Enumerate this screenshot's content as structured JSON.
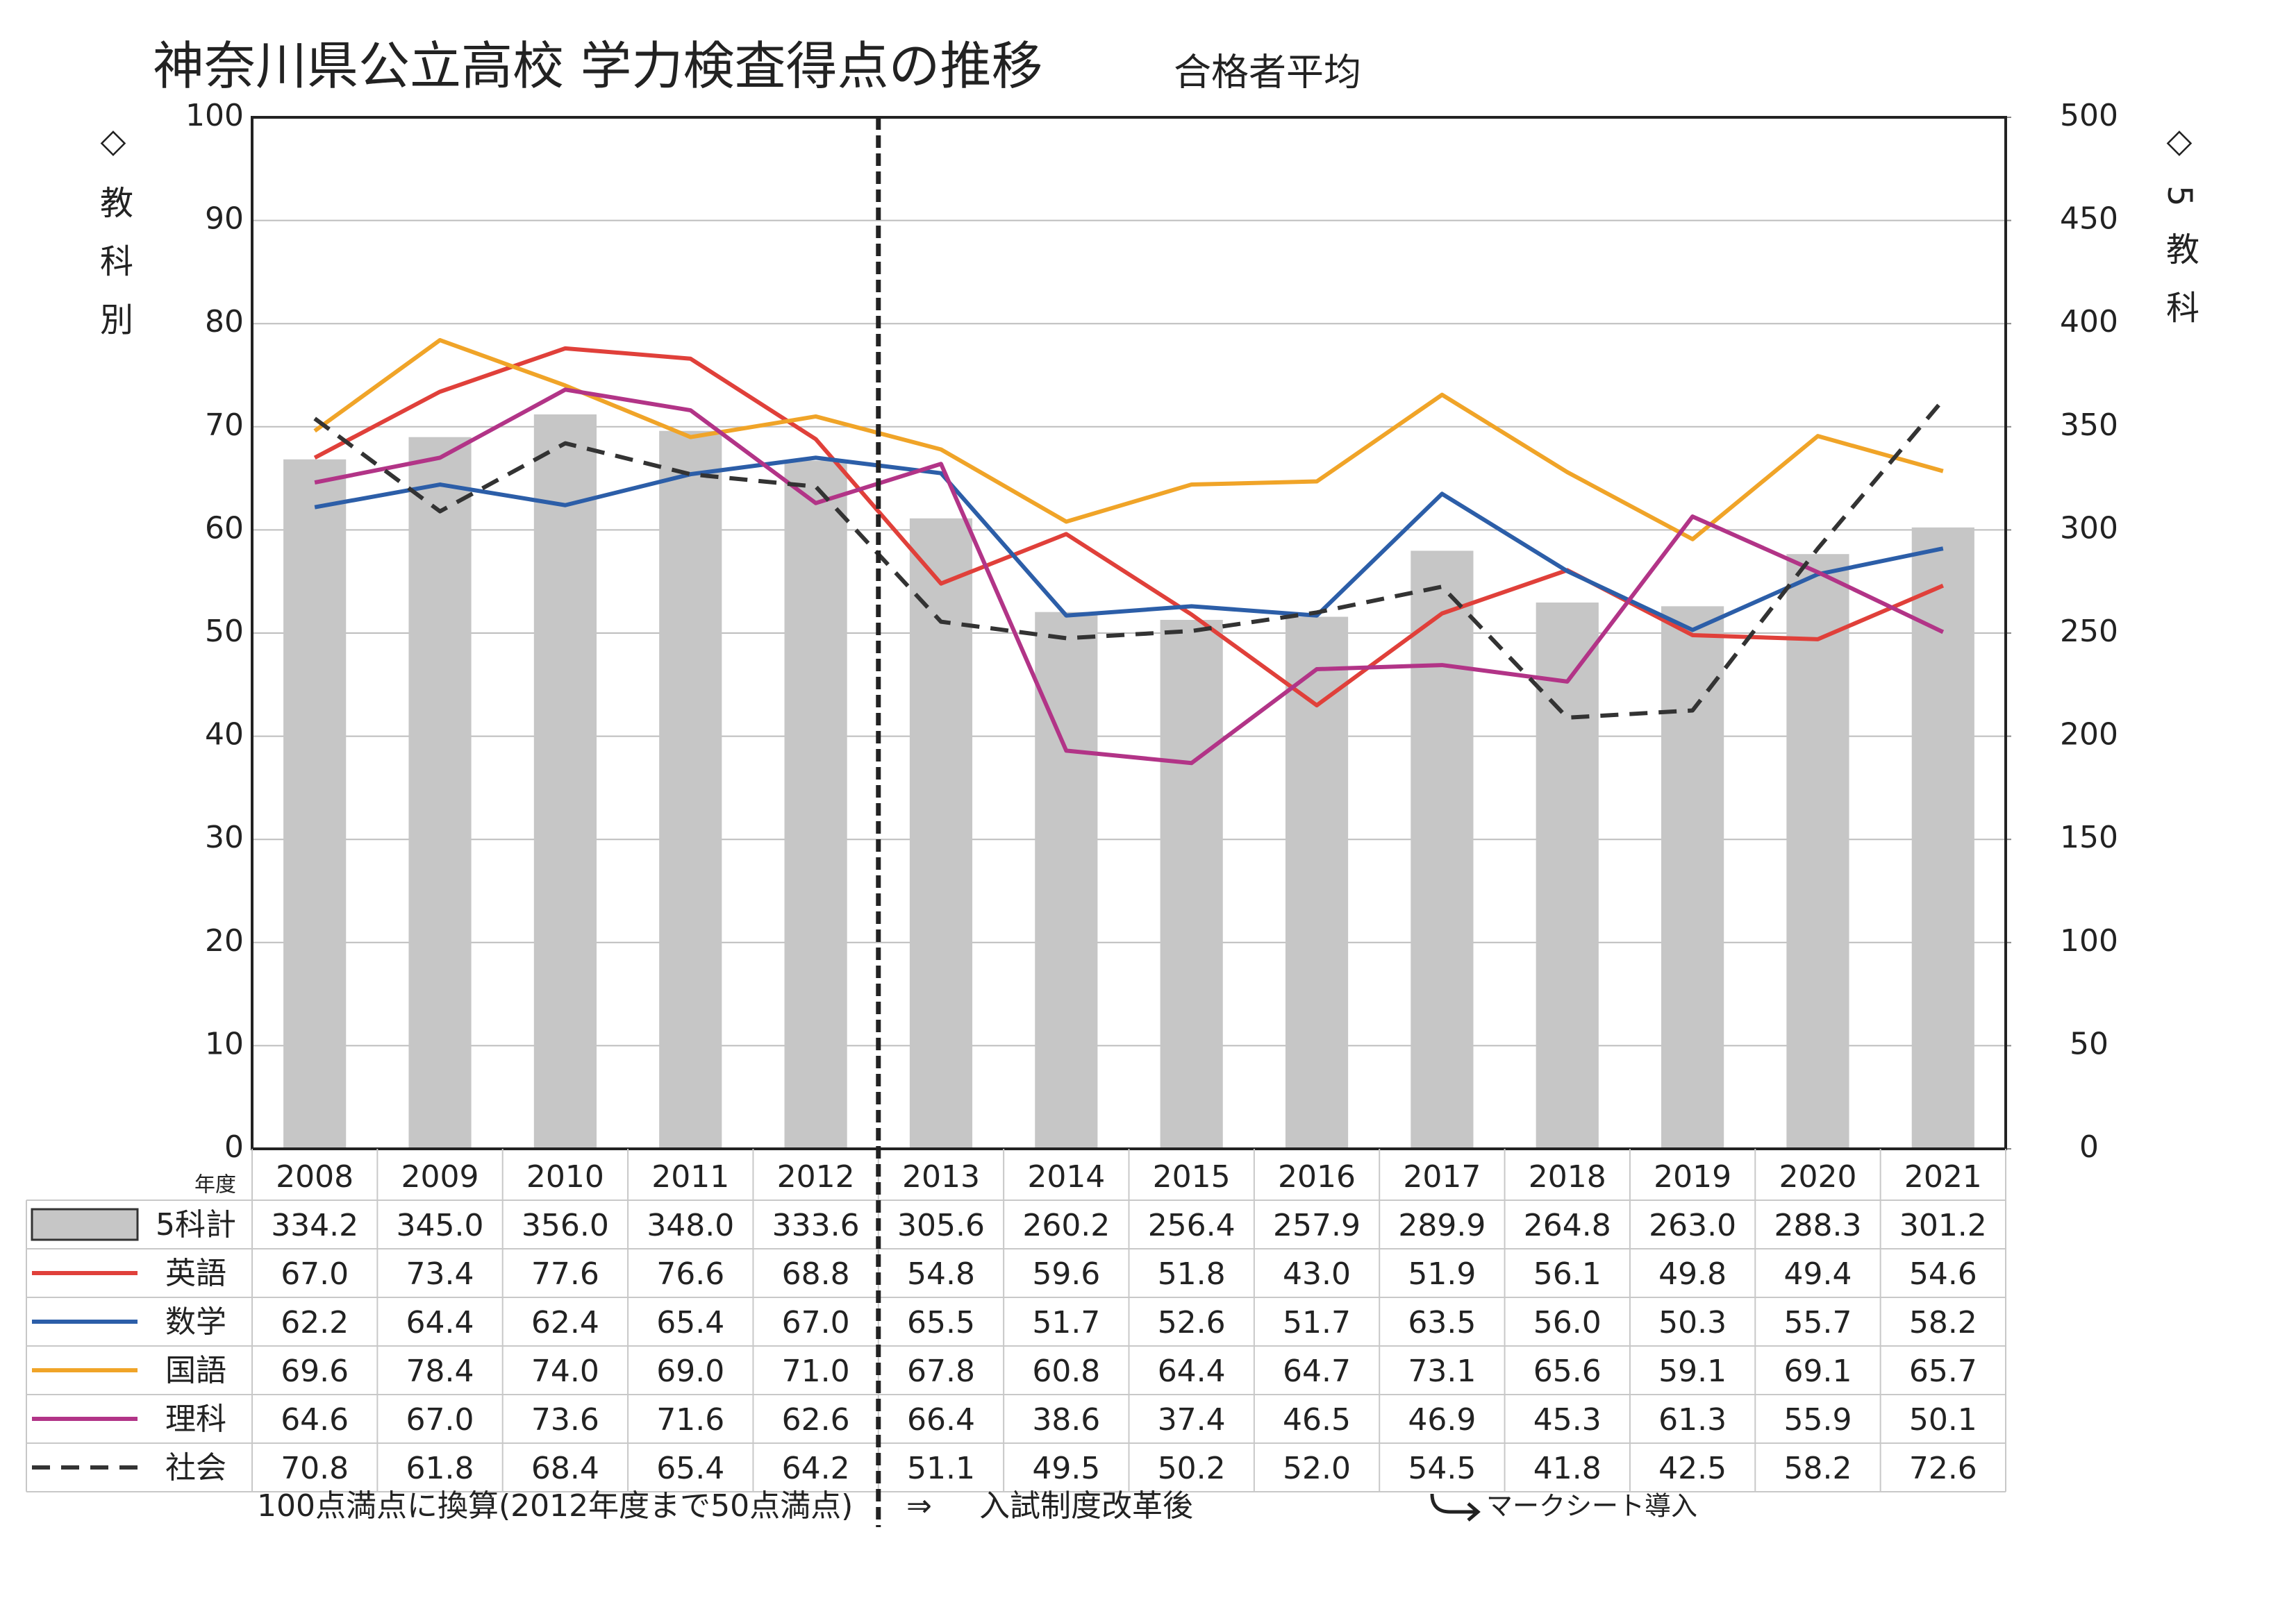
{
  "chart_data": {
    "type": "combo",
    "title": "神奈川県公立高校 学力検査得点の推移",
    "subtitle": "合格者平均",
    "ylabel": "◇教科別",
    "y2label": "◇5教科",
    "x_label": "年度",
    "categories": [
      "2008",
      "2009",
      "2010",
      "2011",
      "2012",
      "2013",
      "2014",
      "2015",
      "2016",
      "2017",
      "2018",
      "2019",
      "2020",
      "2021"
    ],
    "ylim": [
      0,
      100
    ],
    "yticks": [
      0,
      10,
      20,
      30,
      40,
      50,
      60,
      70,
      80,
      90,
      100
    ],
    "y2lim": [
      0,
      500
    ],
    "y2ticks": [
      0,
      50,
      100,
      150,
      200,
      250,
      300,
      350,
      400,
      450,
      500
    ],
    "grid": true,
    "series": [
      {
        "name": "5科計",
        "type": "bar",
        "axis": "y2",
        "color": "#c6c6c6",
        "values": [
          334.2,
          345.0,
          356.0,
          348.0,
          333.6,
          305.6,
          260.2,
          256.4,
          257.9,
          289.9,
          264.8,
          263.0,
          288.3,
          301.2
        ],
        "value_labels": [
          "334.2",
          "345.0",
          "356.0",
          "348.0",
          "333.6",
          "305.6",
          "260.2",
          "256.4",
          "257.9",
          "289.9",
          "264.8",
          "263.0",
          "288.3",
          "301.2"
        ]
      },
      {
        "name": "英語",
        "type": "line",
        "color": "#e0403a",
        "values": [
          67.0,
          73.4,
          77.6,
          76.6,
          68.8,
          54.8,
          59.6,
          51.8,
          43.0,
          51.9,
          56.1,
          49.8,
          49.4,
          54.6
        ],
        "value_labels": [
          "67.0",
          "73.4",
          "77.6",
          "76.6",
          "68.8",
          "54.8",
          "59.6",
          "51.8",
          "43.0",
          "51.9",
          "56.1",
          "49.8",
          "49.4",
          "54.6"
        ]
      },
      {
        "name": "数学",
        "type": "line",
        "color": "#2c5ea8",
        "values": [
          62.2,
          64.4,
          62.4,
          65.4,
          67.0,
          65.5,
          51.7,
          52.6,
          51.7,
          63.5,
          56.0,
          50.3,
          55.7,
          58.2
        ],
        "value_labels": [
          "62.2",
          "64.4",
          "62.4",
          "65.4",
          "67.0",
          "65.5",
          "51.7",
          "52.6",
          "51.7",
          "63.5",
          "56.0",
          "50.3",
          "55.7",
          "58.2"
        ]
      },
      {
        "name": "国語",
        "type": "line",
        "color": "#f0a428",
        "values": [
          69.6,
          78.4,
          74.0,
          69.0,
          71.0,
          67.8,
          60.8,
          64.4,
          64.7,
          73.1,
          65.6,
          59.1,
          69.1,
          65.7
        ],
        "value_labels": [
          "69.6",
          "78.4",
          "74.0",
          "69.0",
          "71.0",
          "67.8",
          "60.8",
          "64.4",
          "64.7",
          "73.1",
          "65.6",
          "59.1",
          "69.1",
          "65.7"
        ]
      },
      {
        "name": "理科",
        "type": "line",
        "color": "#b23487",
        "values": [
          64.6,
          67.0,
          73.6,
          71.6,
          62.6,
          66.4,
          38.6,
          37.4,
          46.5,
          46.9,
          45.3,
          61.3,
          55.9,
          50.1
        ],
        "value_labels": [
          "64.6",
          "67.0",
          "73.6",
          "71.6",
          "62.6",
          "66.4",
          "38.6",
          "37.4",
          "46.5",
          "46.9",
          "45.3",
          "61.3",
          "55.9",
          "50.1"
        ]
      },
      {
        "name": "社会",
        "type": "line",
        "dashed": true,
        "color": "#333333",
        "values": [
          70.8,
          61.8,
          68.4,
          65.4,
          64.2,
          51.1,
          49.5,
          50.2,
          52.0,
          54.5,
          41.8,
          42.5,
          58.2,
          72.6
        ],
        "value_labels": [
          "70.8",
          "61.8",
          "68.4",
          "65.4",
          "64.2",
          "51.1",
          "49.5",
          "50.2",
          "52.0",
          "54.5",
          "41.8",
          "42.5",
          "58.2",
          "72.6"
        ]
      }
    ],
    "notes": [
      "100点満点に換算(2012年度まで50点満点)",
      "⇒",
      "入試制度改革後",
      "マークシート導入"
    ]
  }
}
